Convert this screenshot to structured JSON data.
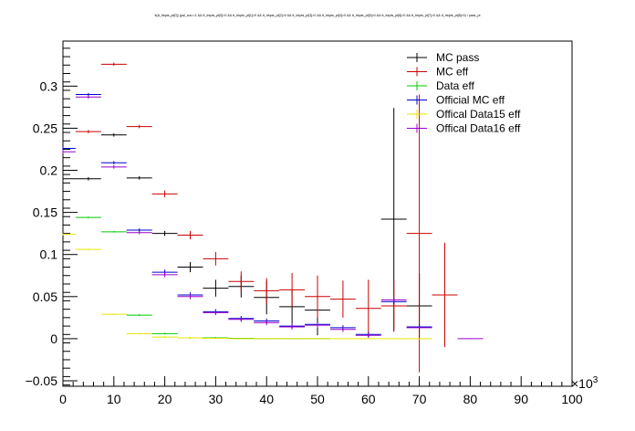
{
  "chart_data": {
    "type": "scatter",
    "title": "tt(tt_trkpts_pt[0]) (pal_cut==1 && tt_trkpts_pt[0]>0 && tt_trkpts_pt[1]>0 && tt_trkpts_pt[2]>0 && tt_trkpts_pt[3]>0 && tt_trkpts_pt[4]>0 && tt_trkpts_pt[5]>0 && tt_trkpts_pt[6]>0 && tt_trkpts_pt[7]>0 && tt_trkpts_pt[8]>0) / pass_pt",
    "x_multiplier": "×10",
    "x_multiplier_exp": "3",
    "xlim": [
      0,
      100
    ],
    "ylim": [
      -0.06,
      0.35
    ],
    "x_ticks": [
      0,
      10,
      20,
      30,
      40,
      50,
      60,
      70,
      80,
      90,
      100
    ],
    "y_ticks": [
      -0.05,
      0,
      0.05,
      0.1,
      0.15,
      0.2,
      0.25,
      0.3
    ],
    "y_tick_labels": [
      "−0.05",
      "0",
      "0.05",
      "0.1",
      "0.15",
      "0.2",
      "0.25",
      "0.3"
    ],
    "legend_position": "top-right",
    "series": [
      {
        "name": "MC pass",
        "color": "#000000",
        "points": [
          {
            "x": 0,
            "xerr": 2.5,
            "y": 0.19,
            "yerr": 0.002
          },
          {
            "x": 5,
            "xerr": 2.5,
            "y": 0.19,
            "yerr": 0.002
          },
          {
            "x": 10,
            "xerr": 2.5,
            "y": 0.242,
            "yerr": 0.002
          },
          {
            "x": 15,
            "xerr": 2.5,
            "y": 0.191,
            "yerr": 0.002
          },
          {
            "x": 20,
            "xerr": 2.5,
            "y": 0.125,
            "yerr": 0.003
          },
          {
            "x": 25,
            "xerr": 2.5,
            "y": 0.085,
            "yerr": 0.006
          },
          {
            "x": 30,
            "xerr": 2.5,
            "y": 0.06,
            "yerr": 0.01
          },
          {
            "x": 35,
            "xerr": 2.5,
            "y": 0.062,
            "yerr": 0.013
          },
          {
            "x": 40,
            "xerr": 2.5,
            "y": 0.049,
            "yerr": 0.02
          },
          {
            "x": 45,
            "xerr": 2.5,
            "y": 0.038,
            "yerr": 0.02
          },
          {
            "x": 50,
            "xerr": 2.5,
            "y": 0.034,
            "yerr": 0.03
          },
          {
            "x": 65,
            "xerr": 2.5,
            "y": 0.142,
            "yerr": 0.132
          },
          {
            "x": 70,
            "xerr": 2.5,
            "y": 0.039,
            "yerr": 0.039
          }
        ]
      },
      {
        "name": "MC eff",
        "color": "#cc0000",
        "points": [
          {
            "x": 5,
            "xerr": 2.5,
            "y": 0.246,
            "yerr": 0.002
          },
          {
            "x": 10,
            "xerr": 2.5,
            "y": 0.326,
            "yerr": 0.002
          },
          {
            "x": 15,
            "xerr": 2.5,
            "y": 0.252,
            "yerr": 0.002
          },
          {
            "x": 20,
            "xerr": 2.5,
            "y": 0.172,
            "yerr": 0.004
          },
          {
            "x": 25,
            "xerr": 2.5,
            "y": 0.123,
            "yerr": 0.005
          },
          {
            "x": 30,
            "xerr": 2.5,
            "y": 0.095,
            "yerr": 0.008
          },
          {
            "x": 35,
            "xerr": 2.5,
            "y": 0.068,
            "yerr": 0.012
          },
          {
            "x": 40,
            "xerr": 2.5,
            "y": 0.057,
            "yerr": 0.015
          },
          {
            "x": 45,
            "xerr": 2.5,
            "y": 0.058,
            "yerr": 0.02
          },
          {
            "x": 50,
            "xerr": 2.5,
            "y": 0.05,
            "yerr": 0.025
          },
          {
            "x": 55,
            "xerr": 2.5,
            "y": 0.047,
            "yerr": 0.022
          },
          {
            "x": 60,
            "xerr": 2.5,
            "y": 0.036,
            "yerr": 0.034
          },
          {
            "x": 65,
            "xerr": 2.5,
            "y": 0.039,
            "yerr": 0.031
          },
          {
            "x": 70,
            "xerr": 2.5,
            "y": 0.125,
            "yerr": 0.165
          },
          {
            "x": 75,
            "xerr": 2.5,
            "y": 0.052,
            "yerr": 0.062
          }
        ]
      },
      {
        "name": "Data eff",
        "color": "#00cc00",
        "points": [
          {
            "x": 5,
            "xerr": 2.5,
            "y": 0.144,
            "yerr": 0.001
          },
          {
            "x": 10,
            "xerr": 2.5,
            "y": 0.127,
            "yerr": 0.001
          },
          {
            "x": 15,
            "xerr": 2.5,
            "y": 0.028,
            "yerr": 0.001
          },
          {
            "x": 20,
            "xerr": 2.5,
            "y": 0.006,
            "yerr": 0.001
          },
          {
            "x": 25,
            "xerr": 2.5,
            "y": 0.001,
            "yerr": 0.001
          },
          {
            "x": 30,
            "xerr": 2.5,
            "y": 0.001,
            "yerr": 0.001
          },
          {
            "x": 35,
            "xerr": 2.5,
            "y": 0.0005,
            "yerr": 0.0005
          },
          {
            "x": 40,
            "xerr": 2.5,
            "y": 0.0,
            "yerr": 0.0005
          },
          {
            "x": 45,
            "xerr": 2.5,
            "y": 0.0,
            "yerr": 0.0005
          },
          {
            "x": 50,
            "xerr": 2.5,
            "y": 0.0,
            "yerr": 0.0005
          }
        ]
      },
      {
        "name": "Official MC eff",
        "color": "#0000cc",
        "points": [
          {
            "x": 0,
            "xerr": 2.5,
            "y": 0.226,
            "yerr": 0.002
          },
          {
            "x": 5,
            "xerr": 2.5,
            "y": 0.29,
            "yerr": 0.002
          },
          {
            "x": 10,
            "xerr": 2.5,
            "y": 0.209,
            "yerr": 0.002
          },
          {
            "x": 15,
            "xerr": 2.5,
            "y": 0.129,
            "yerr": 0.002
          },
          {
            "x": 20,
            "xerr": 2.5,
            "y": 0.079,
            "yerr": 0.003
          },
          {
            "x": 25,
            "xerr": 2.5,
            "y": 0.052,
            "yerr": 0.003
          },
          {
            "x": 30,
            "xerr": 2.5,
            "y": 0.032,
            "yerr": 0.003
          },
          {
            "x": 35,
            "xerr": 2.5,
            "y": 0.024,
            "yerr": 0.003
          },
          {
            "x": 40,
            "xerr": 2.5,
            "y": 0.021,
            "yerr": 0.003
          },
          {
            "x": 45,
            "xerr": 2.5,
            "y": 0.015,
            "yerr": 0.003
          },
          {
            "x": 50,
            "xerr": 2.5,
            "y": 0.017,
            "yerr": 0.003
          },
          {
            "x": 55,
            "xerr": 2.5,
            "y": 0.013,
            "yerr": 0.003
          },
          {
            "x": 60,
            "xerr": 2.5,
            "y": 0.005,
            "yerr": 0.003
          },
          {
            "x": 65,
            "xerr": 2.5,
            "y": 0.044,
            "yerr": 0.003
          },
          {
            "x": 70,
            "xerr": 2.5,
            "y": 0.014,
            "yerr": 0.002
          }
        ]
      },
      {
        "name": "Offical Data15 eff",
        "color": "#e6e600",
        "points": [
          {
            "x": 0,
            "xerr": 2.5,
            "y": 0.124,
            "yerr": 0.001
          },
          {
            "x": 5,
            "xerr": 2.5,
            "y": 0.106,
            "yerr": 0.001
          },
          {
            "x": 10,
            "xerr": 2.5,
            "y": 0.029,
            "yerr": 0.001
          },
          {
            "x": 15,
            "xerr": 2.5,
            "y": 0.006,
            "yerr": 0.001
          },
          {
            "x": 20,
            "xerr": 2.5,
            "y": 0.002,
            "yerr": 0.001
          },
          {
            "x": 25,
            "xerr": 2.5,
            "y": 0.001,
            "yerr": 0.001
          },
          {
            "x": 30,
            "xerr": 2.5,
            "y": 0.0005,
            "yerr": 0.0005
          },
          {
            "x": 35,
            "xerr": 2.5,
            "y": 0.0,
            "yerr": 0.0005
          },
          {
            "x": 40,
            "xerr": 2.5,
            "y": 0.0,
            "yerr": 0.0005
          },
          {
            "x": 45,
            "xerr": 2.5,
            "y": 0.0,
            "yerr": 0.0005
          },
          {
            "x": 50,
            "xerr": 2.5,
            "y": 0.0,
            "yerr": 0.0005
          },
          {
            "x": 55,
            "xerr": 2.5,
            "y": 0.0,
            "yerr": 0.0005
          },
          {
            "x": 60,
            "xerr": 2.5,
            "y": 0.0,
            "yerr": 0.0005
          },
          {
            "x": 65,
            "xerr": 2.5,
            "y": 0.0,
            "yerr": 0.0005
          },
          {
            "x": 70,
            "xerr": 2.5,
            "y": 0.0,
            "yerr": 0.0005
          }
        ]
      },
      {
        "name": "Offical Data16 eff",
        "color": "#9900cc",
        "points": [
          {
            "x": 0,
            "xerr": 2.5,
            "y": 0.222,
            "yerr": 0.002
          },
          {
            "x": 5,
            "xerr": 2.5,
            "y": 0.287,
            "yerr": 0.002
          },
          {
            "x": 10,
            "xerr": 2.5,
            "y": 0.204,
            "yerr": 0.002
          },
          {
            "x": 15,
            "xerr": 2.5,
            "y": 0.126,
            "yerr": 0.002
          },
          {
            "x": 20,
            "xerr": 2.5,
            "y": 0.076,
            "yerr": 0.003
          },
          {
            "x": 25,
            "xerr": 2.5,
            "y": 0.05,
            "yerr": 0.003
          },
          {
            "x": 30,
            "xerr": 2.5,
            "y": 0.031,
            "yerr": 0.003
          },
          {
            "x": 35,
            "xerr": 2.5,
            "y": 0.023,
            "yerr": 0.003
          },
          {
            "x": 40,
            "xerr": 2.5,
            "y": 0.019,
            "yerr": 0.003
          },
          {
            "x": 45,
            "xerr": 2.5,
            "y": 0.014,
            "yerr": 0.003
          },
          {
            "x": 50,
            "xerr": 2.5,
            "y": 0.016,
            "yerr": 0.003
          },
          {
            "x": 55,
            "xerr": 2.5,
            "y": 0.011,
            "yerr": 0.003
          },
          {
            "x": 60,
            "xerr": 2.5,
            "y": 0.004,
            "yerr": 0.003
          },
          {
            "x": 65,
            "xerr": 2.5,
            "y": 0.046,
            "yerr": 0.003
          },
          {
            "x": 70,
            "xerr": 2.5,
            "y": 0.013,
            "yerr": 0.002
          },
          {
            "x": 80,
            "xerr": 2.5,
            "y": 0.0,
            "yerr": 0.0005
          }
        ]
      }
    ]
  }
}
